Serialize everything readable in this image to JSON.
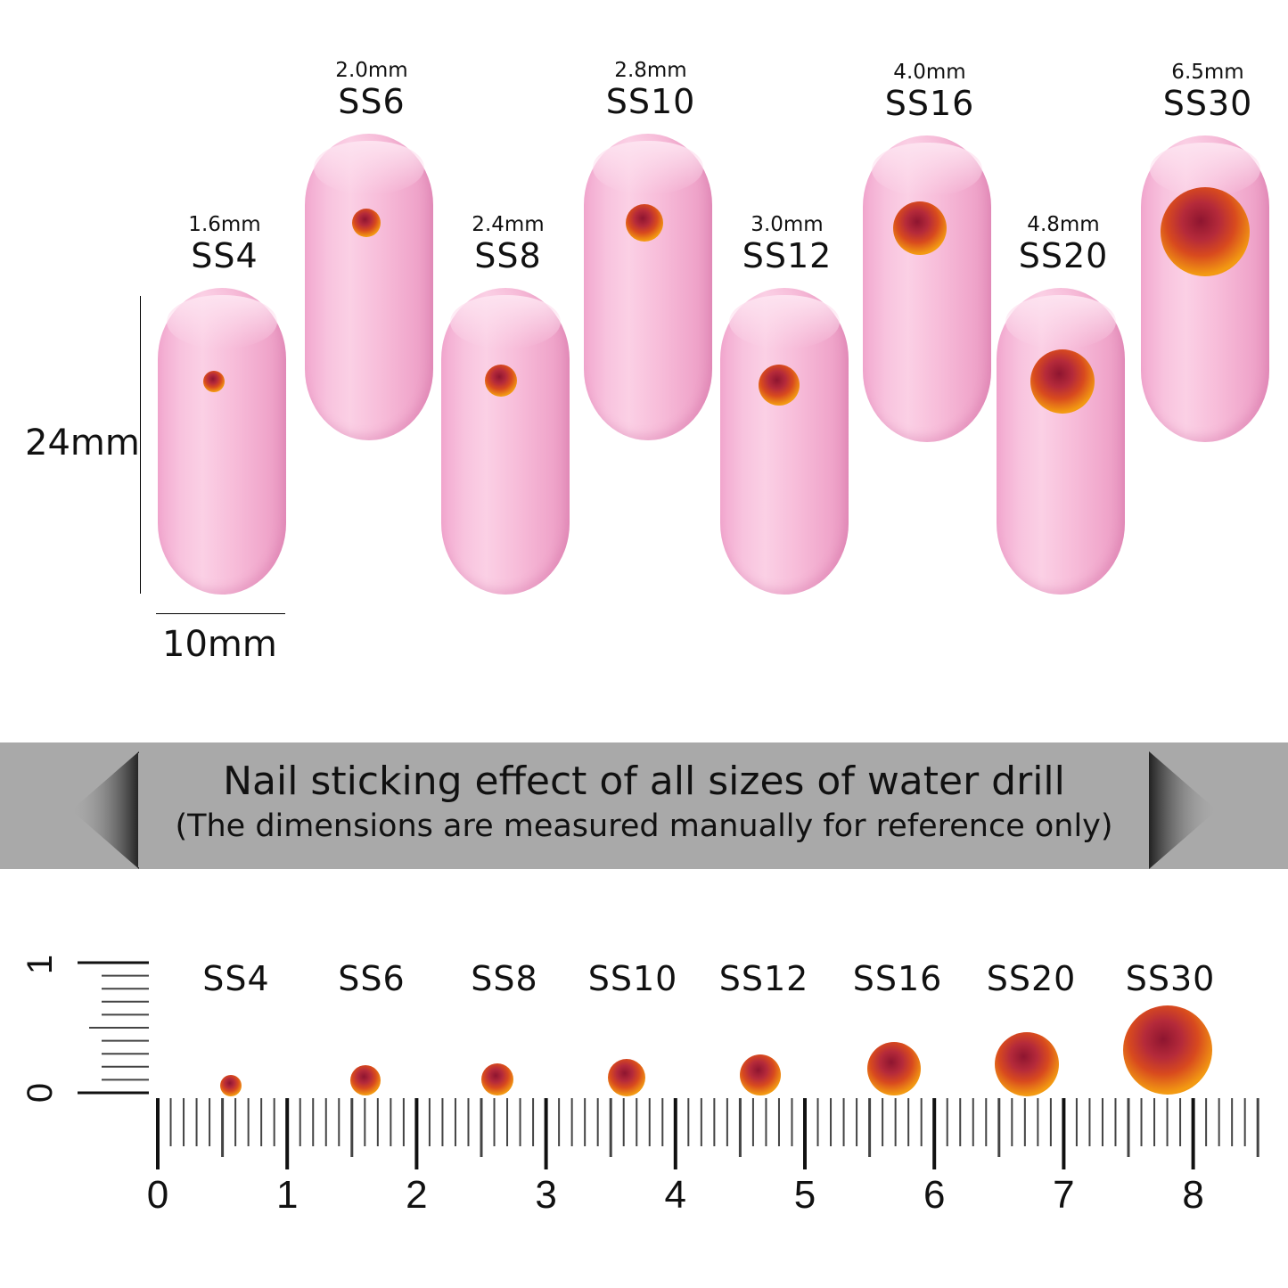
{
  "nails": [
    {
      "size_mm": "1.6mm",
      "name": "SS4"
    },
    {
      "size_mm": "2.0mm",
      "name": "SS6"
    },
    {
      "size_mm": "2.4mm",
      "name": "SS8"
    },
    {
      "size_mm": "2.8mm",
      "name": "SS10"
    },
    {
      "size_mm": "3.0mm",
      "name": "SS12"
    },
    {
      "size_mm": "4.0mm",
      "name": "SS16"
    },
    {
      "size_mm": "4.8mm",
      "name": "SS20"
    },
    {
      "size_mm": "6.5mm",
      "name": "SS30"
    }
  ],
  "dimensions": {
    "height": "24mm",
    "width": "10mm"
  },
  "banner": {
    "title": "Nail sticking effect of all sizes of water drill",
    "subtitle": "(The dimensions are measured manually for reference only)"
  },
  "ruler": {
    "labels": [
      "SS4",
      "SS6",
      "SS8",
      "SS10",
      "SS12",
      "SS16",
      "SS20",
      "SS30"
    ],
    "numbers": [
      "0",
      "1",
      "2",
      "3",
      "4",
      "5",
      "6",
      "7",
      "8"
    ],
    "vertical_numbers": [
      "0",
      "1"
    ]
  },
  "colors": {
    "nail": "#f8c3de",
    "banner": "#a9a9a9",
    "gem_center": "#b0203a",
    "gem_edge": "#f08a10"
  }
}
